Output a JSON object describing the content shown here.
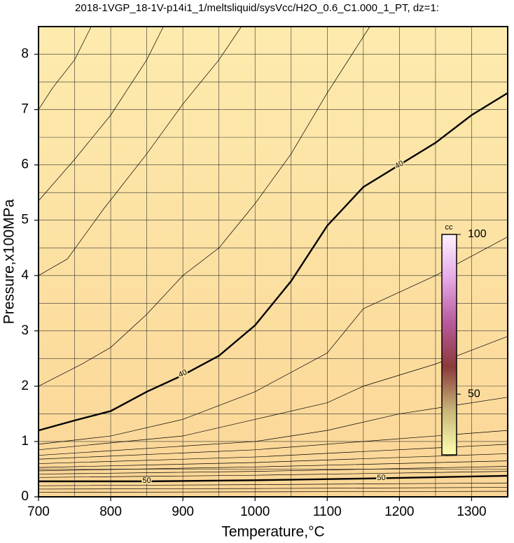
{
  "chart_data": {
    "type": "contour",
    "title": "2018-1VGP_18-1V-p14i1_1/meltsliquid/sysVcc/H2O_0.6_C1.000_1_PT, dz=1:",
    "x_label": "Temperature,°C",
    "y_label": "Pressure,x100MPa",
    "xlim": [
      700,
      1350
    ],
    "ylim": [
      0,
      8.5
    ],
    "xticks": [
      700,
      800,
      900,
      1000,
      1100,
      1200,
      1300
    ],
    "yticks": [
      0,
      1,
      2,
      3,
      4,
      5,
      6,
      7,
      8
    ],
    "xgrid": [
      750,
      800,
      850,
      900,
      950,
      1000,
      1050,
      1100,
      1150,
      1200,
      1250,
      1300
    ],
    "ygrid": [
      0.5,
      1,
      1.5,
      2,
      2.5,
      3,
      3.5,
      4,
      4.5,
      5,
      5.5,
      6,
      6.5,
      7,
      7.5,
      8
    ],
    "grid": true,
    "background": [
      "#fdebad",
      "#fbd697"
    ],
    "series": [
      {
        "name": "40",
        "bold": true,
        "x": [
          700,
          750,
          800,
          850,
          900,
          950,
          1000,
          1050,
          1100,
          1150,
          1200,
          1250,
          1300,
          1350
        ],
        "values": [
          1.2,
          1.38,
          1.55,
          1.9,
          2.2,
          2.55,
          3.1,
          3.9,
          4.9,
          5.6,
          6.0,
          6.4,
          6.9,
          7.3
        ]
      },
      {
        "name": "50",
        "bold": true,
        "x": [
          700,
          850,
          1000,
          1150,
          1350
        ],
        "values": [
          0.28,
          0.28,
          0.3,
          0.33,
          0.38
        ]
      },
      {
        "x": [
          700,
          720,
          750,
          773
        ],
        "values": [
          7.0,
          7.4,
          7.9,
          8.5
        ]
      },
      {
        "x": [
          700,
          750,
          800,
          850,
          873
        ],
        "values": [
          5.35,
          6.1,
          6.9,
          7.9,
          8.5
        ]
      },
      {
        "x": [
          700,
          740,
          790,
          850,
          900,
          950,
          981
        ],
        "values": [
          4.0,
          4.3,
          5.2,
          6.2,
          7.1,
          7.9,
          8.5
        ]
      },
      {
        "x": [
          700,
          760,
          800,
          850,
          900,
          950,
          1000,
          1050,
          1100,
          1159
        ],
        "values": [
          2.0,
          2.4,
          2.7,
          3.3,
          4.0,
          4.5,
          5.3,
          6.2,
          7.3,
          8.5
        ]
      },
      {
        "x": [
          700,
          800,
          900,
          1000,
          1100,
          1150,
          1250,
          1350
        ],
        "values": [
          0.95,
          1.1,
          1.4,
          1.9,
          2.6,
          3.4,
          4.0,
          4.7
        ]
      },
      {
        "x": [
          700,
          900,
          1000,
          1100,
          1150,
          1250,
          1350
        ],
        "values": [
          0.85,
          1.1,
          1.4,
          1.7,
          2.0,
          2.4,
          2.9
        ]
      },
      {
        "x": [
          700,
          1000,
          1100,
          1200,
          1350
        ],
        "values": [
          0.75,
          1.0,
          1.2,
          1.5,
          1.8
        ]
      },
      {
        "x": [
          700,
          1000,
          1350
        ],
        "values": [
          0.68,
          0.85,
          1.2
        ]
      },
      {
        "x": [
          700,
          1000,
          1350
        ],
        "values": [
          0.6,
          0.72,
          0.95
        ]
      },
      {
        "x": [
          700,
          1000,
          1350
        ],
        "values": [
          0.53,
          0.62,
          0.78
        ]
      },
      {
        "x": [
          700,
          1000,
          1350
        ],
        "values": [
          0.47,
          0.54,
          0.65
        ]
      },
      {
        "x": [
          700,
          1000,
          1350
        ],
        "values": [
          0.41,
          0.46,
          0.55
        ]
      },
      {
        "x": [
          700,
          1000,
          1350
        ],
        "values": [
          0.35,
          0.39,
          0.46
        ]
      },
      {
        "x": [
          700,
          1000,
          1350
        ],
        "values": [
          0.2,
          0.22,
          0.25
        ]
      },
      {
        "x": [
          700,
          1000,
          1350
        ],
        "values": [
          0.14,
          0.15,
          0.17
        ]
      },
      {
        "x": [
          700,
          1000,
          1350
        ],
        "values": [
          0.08,
          0.09,
          0.1
        ]
      }
    ],
    "colorbar": {
      "label": "cc",
      "lim": [
        31,
        100
      ],
      "ticks": [
        50,
        100
      ],
      "colors": [
        "#ffffb0",
        "#c8b678",
        "#8c3a3a",
        "#b85a9c",
        "#e6a8e6",
        "#fff0ff"
      ]
    }
  }
}
